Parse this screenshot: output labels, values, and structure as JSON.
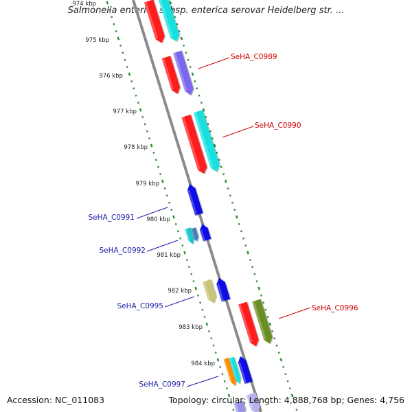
{
  "title": "Salmonella enterica subsp. enterica serovar Heidelberg str. ...",
  "accession": "Accession: NC_011083",
  "topology": "Topology: circular; Length: 4,888,768 bp; Genes: 4,756",
  "colors": {
    "backbone": "#888888",
    "ticks": "#2e8b2e",
    "forward_gene_label": "#cc0000",
    "reverse_gene_label": "#1a1aa6"
  },
  "ruler_labels": [
    "974 kbp",
    "975 kbp",
    "976 kbp",
    "977 kbp",
    "978 kbp",
    "979 kbp",
    "980 kbp",
    "981 kbp",
    "982 kbp",
    "983 kbp",
    "984 kbp"
  ],
  "gene_labels": [
    {
      "text": "SeHA_C0989",
      "strand": "forward"
    },
    {
      "text": "SeHA_C0990",
      "strand": "forward"
    },
    {
      "text": "SeHA_C0991",
      "strand": "reverse"
    },
    {
      "text": "SeHA_C0992",
      "strand": "reverse"
    },
    {
      "text": "SeHA_C0995",
      "strand": "reverse"
    },
    {
      "text": "SeHA_C0996",
      "strand": "forward"
    },
    {
      "text": "SeHA_C0997",
      "strand": "reverse"
    }
  ]
}
